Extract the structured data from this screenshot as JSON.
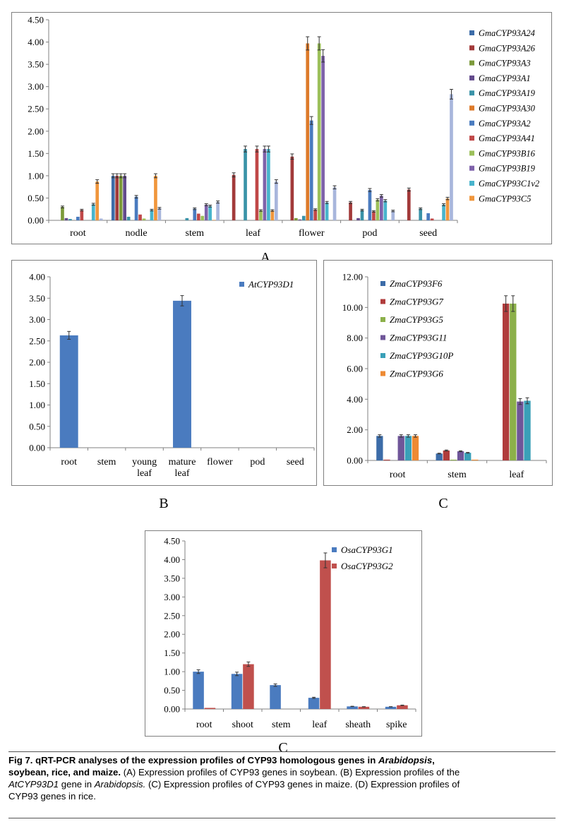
{
  "figure": {
    "panel_labels": [
      "A",
      "B",
      "C",
      "C"
    ],
    "caption": {
      "title_pre": "Fig 7. qRT-PCR analyses of the expression profiles of CYP93 homologous genes in ",
      "title_italic": "Arabidopsis",
      "title_post": ",",
      "title_line2": "soybean, rice, and maize.",
      "body_1": " (A) Expression profiles of CYP93 genes in soybean. (B) Expression profiles of the",
      "body_2_gene": "AtCYP93D1",
      "body_2_mid": " gene in ",
      "body_2_italic": "Arabidopsis.",
      "body_2_post": " (C) Expression profiles of CYP93 genes in maize. (D) Expression profiles of",
      "body_3": "CYP93 genes in rice."
    }
  },
  "chart_data": [
    {
      "id": "A",
      "type": "bar",
      "ylim": [
        0,
        4.5
      ],
      "yticks": [
        "0.00",
        "0.50",
        "1.00",
        "1.50",
        "2.00",
        "2.50",
        "3.00",
        "3.50",
        "4.00",
        "4.50"
      ],
      "categories": [
        "root",
        "nodle",
        "stem",
        "leaf",
        "flower",
        "pod",
        "seed"
      ],
      "legend_position": "right",
      "series": [
        {
          "name": "GmaCYP93A24",
          "color": "#3c6ca8",
          "values": [
            0.0,
            1.0,
            0.0,
            0.0,
            0.0,
            0.0,
            0.0
          ]
        },
        {
          "name": "GmaCYP93A26",
          "color": "#a23a3a",
          "values": [
            0.0,
            1.0,
            0.0,
            1.02,
            1.43,
            0.4,
            0.69
          ]
        },
        {
          "name": "GmaCYP93A3",
          "color": "#7c9a3a",
          "values": [
            0.3,
            1.0,
            0.0,
            0.0,
            0.05,
            0.0,
            0.0
          ]
        },
        {
          "name": "GmaCYP93A1",
          "color": "#634a8c",
          "values": [
            0.05,
            1.0,
            0.0,
            0.0,
            0.02,
            0.05,
            0.0
          ]
        },
        {
          "name": "GmaCYP93A19",
          "color": "#3a93a8",
          "values": [
            0.03,
            0.08,
            0.05,
            1.6,
            0.1,
            0.23,
            0.26
          ]
        },
        {
          "name": "GmaCYP93A30",
          "color": "#dd7a2a",
          "values": [
            0.0,
            0.0,
            0.0,
            0.0,
            3.97,
            0.0,
            0.0
          ]
        },
        {
          "name": "GmaCYP93A2",
          "color": "#4a7bbf",
          "values": [
            0.08,
            0.53,
            0.26,
            0.0,
            2.24,
            0.68,
            0.16
          ]
        },
        {
          "name": "GmaCYP93A41",
          "color": "#c04848",
          "values": [
            0.23,
            0.13,
            0.15,
            1.6,
            0.24,
            0.2,
            0.04
          ]
        },
        {
          "name": "GmaCYP93B16",
          "color": "#9cc05a",
          "values": [
            0.0,
            0.04,
            0.1,
            0.22,
            3.97,
            0.46,
            0.0
          ]
        },
        {
          "name": "GmaCYP93B19",
          "color": "#7e62aa",
          "values": [
            0.0,
            0.0,
            0.35,
            1.6,
            3.69,
            0.55,
            0.0
          ]
        },
        {
          "name": "GmaCYP93C1v2",
          "color": "#48b4cc",
          "values": [
            0.36,
            0.23,
            0.32,
            1.6,
            0.4,
            0.44,
            0.35
          ]
        },
        {
          "name": "GmaCYP93C5",
          "color": "#f0963c",
          "values": [
            0.87,
            1.0,
            0.01,
            0.22,
            0.0,
            0.0,
            0.49
          ]
        },
        {
          "name": "",
          "color": "#a8b6dc",
          "values": [
            0.04,
            0.27,
            0.41,
            0.87,
            0.74,
            0.21,
            2.83
          ]
        }
      ]
    },
    {
      "id": "B",
      "type": "bar",
      "ylim": [
        0,
        4.0
      ],
      "yticks": [
        "0.00",
        "0.50",
        "1.00",
        "1.50",
        "2.00",
        "2.50",
        "3.00",
        "3.50",
        "4.00"
      ],
      "categories": [
        "root",
        "stem",
        "young leaf",
        "mature leaf",
        "flower",
        "pod",
        "seed"
      ],
      "legend_position": "top-right",
      "series": [
        {
          "name": "AtCYP93D1",
          "color": "#4a7bbf",
          "values": [
            2.63,
            0,
            0,
            3.44,
            0,
            0,
            0
          ]
        }
      ]
    },
    {
      "id": "C-maize",
      "type": "bar",
      "ylim": [
        0,
        12.0
      ],
      "yticks": [
        "0.00",
        "2.00",
        "4.00",
        "6.00",
        "8.00",
        "10.00",
        "12.00"
      ],
      "categories": [
        "root",
        "stem",
        "leaf"
      ],
      "legend_position": "top-left",
      "series": [
        {
          "name": "ZmaCYP93F6",
          "color": "#3c6ca8",
          "values": [
            1.6,
            0.45,
            0.0
          ]
        },
        {
          "name": "ZmaCYP93G7",
          "color": "#b03c3c",
          "values": [
            0.05,
            0.65,
            10.25
          ]
        },
        {
          "name": "ZmaCYP93G5",
          "color": "#8cb04a",
          "values": [
            0.0,
            0.05,
            10.25
          ]
        },
        {
          "name": "ZmaCYP93G11",
          "color": "#6f5699",
          "values": [
            1.6,
            0.6,
            3.85
          ]
        },
        {
          "name": "ZmaCYP93G10P",
          "color": "#3aa0b8",
          "values": [
            1.6,
            0.5,
            3.9
          ]
        },
        {
          "name": "ZmaCYP93G6",
          "color": "#ee8a33",
          "values": [
            1.6,
            0.05,
            0.0
          ]
        }
      ]
    },
    {
      "id": "C-rice",
      "type": "bar",
      "ylim": [
        0,
        4.5
      ],
      "yticks": [
        "0.00",
        "0.50",
        "1.00",
        "1.50",
        "2.00",
        "2.50",
        "3.00",
        "3.50",
        "4.00",
        "4.50"
      ],
      "categories": [
        "root",
        "shoot",
        "stem",
        "leaf",
        "sheath",
        "spike"
      ],
      "legend_position": "top-right",
      "series": [
        {
          "name": "OsaCYP93G1",
          "color": "#4a7bbf",
          "values": [
            1.0,
            0.94,
            0.64,
            0.3,
            0.07,
            0.06
          ]
        },
        {
          "name": "OsaCYP93G2",
          "color": "#c0504d",
          "values": [
            0.03,
            1.2,
            0.0,
            3.98,
            0.06,
            0.1
          ]
        }
      ]
    }
  ]
}
